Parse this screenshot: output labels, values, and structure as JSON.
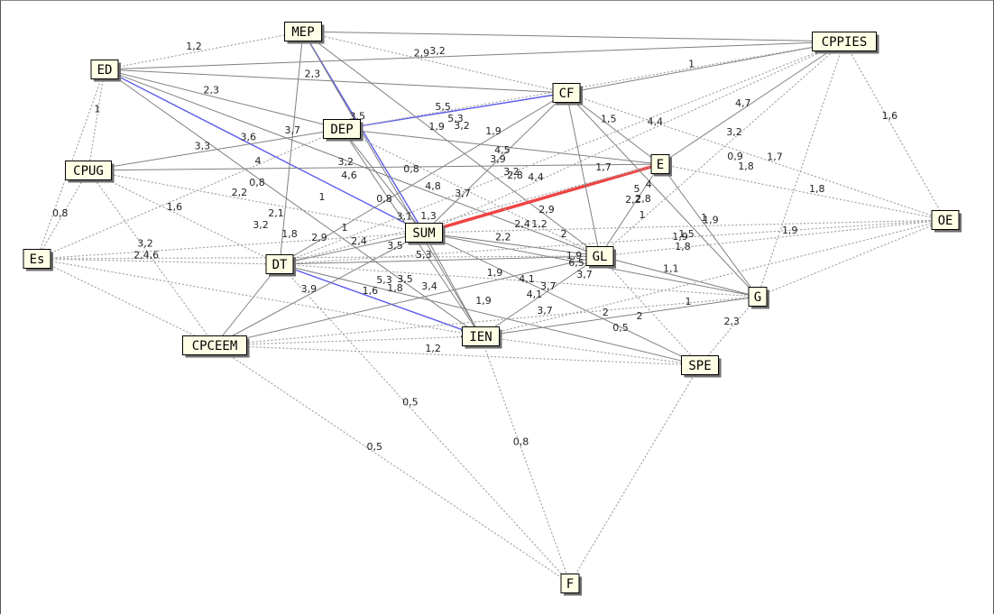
{
  "colors": {
    "background": "#ffffff",
    "node_fill": "#ffffe6",
    "node_border": "#000000",
    "node_shadow": "#6e6e6e",
    "edge_solid": "#808080",
    "edge_dotted": "#a6a6a6",
    "edge_blue": "#5a5aee",
    "edge_red": "#ee4444"
  },
  "nodes": [
    {
      "id": "MEP"
    },
    {
      "id": "CPPIES"
    },
    {
      "id": "ED"
    },
    {
      "id": "CF"
    },
    {
      "id": "DEP"
    },
    {
      "id": "CPUG"
    },
    {
      "id": "E"
    },
    {
      "id": "SUM"
    },
    {
      "id": "OE"
    },
    {
      "id": "Es"
    },
    {
      "id": "DT"
    },
    {
      "id": "GL"
    },
    {
      "id": "G"
    },
    {
      "id": "CPCEEM"
    },
    {
      "id": "IEN"
    },
    {
      "id": "SPE"
    },
    {
      "id": "F"
    }
  ],
  "edges": [
    {
      "source": "MEP",
      "target": "CPPIES",
      "style": "solid",
      "label": ""
    },
    {
      "source": "ED",
      "target": "CPPIES",
      "style": "solid",
      "label": "3,2"
    },
    {
      "source": "ED",
      "target": "CF",
      "style": "solid",
      "label": "2,3"
    },
    {
      "source": "MEP",
      "target": "CF",
      "style": "dotted",
      "label": "2,9"
    },
    {
      "source": "ED",
      "target": "MEP",
      "style": "dotted",
      "label": "1,2"
    },
    {
      "source": "ED",
      "target": "DEP",
      "style": "solid",
      "label": "2,3"
    },
    {
      "source": "ED",
      "target": "SUM",
      "style": "blue",
      "label": "3,6"
    },
    {
      "source": "ED",
      "target": "IEN",
      "style": "solid",
      "label": ""
    },
    {
      "source": "ED",
      "target": "GL",
      "style": "solid",
      "label": ""
    },
    {
      "source": "ED",
      "target": "CPUG",
      "style": "dotted",
      "label": "1"
    },
    {
      "source": "ED",
      "target": "Es",
      "style": "dotted",
      "label": ""
    },
    {
      "source": "MEP",
      "target": "DT",
      "style": "solid",
      "label": "3,7"
    },
    {
      "source": "MEP",
      "target": "SUM",
      "style": "blue",
      "label": "3,5"
    },
    {
      "source": "MEP",
      "target": "GL",
      "style": "solid",
      "label": "1,9"
    },
    {
      "source": "MEP",
      "target": "IEN",
      "style": "solid",
      "label": ""
    },
    {
      "source": "DEP",
      "target": "CF",
      "style": "blue",
      "label": "5,5"
    },
    {
      "source": "CPUG",
      "target": "DEP",
      "style": "solid",
      "label": "3,3"
    },
    {
      "source": "CPUG",
      "target": "E",
      "style": "solid",
      "label": "3,2"
    },
    {
      "source": "DEP",
      "target": "E",
      "style": "solid",
      "label": ""
    },
    {
      "source": "DEP",
      "target": "SUM",
      "style": "solid",
      "label": ""
    },
    {
      "source": "DEP",
      "target": "IEN",
      "style": "solid",
      "label": "3,1"
    },
    {
      "source": "SUM",
      "target": "E",
      "style": "red",
      "label": ""
    },
    {
      "source": "CF",
      "target": "E",
      "style": "solid",
      "label": "1,5"
    },
    {
      "source": "CF",
      "target": "GL",
      "style": "solid",
      "label": ""
    },
    {
      "source": "CF",
      "target": "G",
      "style": "solid",
      "label": ""
    },
    {
      "source": "CF",
      "target": "CPPIES",
      "style": "solid",
      "label": "1"
    },
    {
      "source": "CF",
      "target": "SUM",
      "style": "solid",
      "label": "4,5"
    },
    {
      "source": "CF",
      "target": "DT",
      "style": "solid",
      "label": ""
    },
    {
      "source": "E",
      "target": "CPPIES",
      "style": "solid",
      "label": "4,7"
    },
    {
      "source": "E",
      "target": "GL",
      "style": "solid",
      "label": "2,2"
    },
    {
      "source": "E",
      "target": "G",
      "style": "solid",
      "label": "1"
    },
    {
      "source": "SUM",
      "target": "GL",
      "style": "solid",
      "label": "2,2"
    },
    {
      "source": "SUM",
      "target": "IEN",
      "style": "solid",
      "label": ""
    },
    {
      "source": "SUM",
      "target": "SPE",
      "style": "solid",
      "label": "3,7"
    },
    {
      "source": "SUM",
      "target": "DT",
      "style": "solid",
      "label": "2,4"
    },
    {
      "source": "SUM",
      "target": "G",
      "style": "solid",
      "label": "1,9"
    },
    {
      "source": "DT",
      "target": "CPCEEM",
      "style": "solid",
      "label": ""
    },
    {
      "source": "DT",
      "target": "IEN",
      "style": "blue",
      "label": "1,6"
    },
    {
      "source": "DT",
      "target": "GL",
      "style": "solid",
      "label": "5,3"
    },
    {
      "source": "DT",
      "target": "SPE",
      "style": "solid",
      "label": ""
    },
    {
      "source": "CPCEEM",
      "target": "GL",
      "style": "solid",
      "label": ""
    },
    {
      "source": "CPCEEM",
      "target": "SUM",
      "style": "solid",
      "label": "3,9"
    },
    {
      "source": "IEN",
      "target": "GL",
      "style": "solid",
      "label": "4,1"
    },
    {
      "source": "IEN",
      "target": "G",
      "style": "solid",
      "label": "2"
    },
    {
      "source": "GL",
      "target": "G",
      "style": "solid",
      "label": "1,1"
    },
    {
      "source": "CPPIES",
      "target": "GL",
      "style": "dotted",
      "label": "3,2"
    },
    {
      "source": "CPPIES",
      "target": "DEP",
      "style": "dotted",
      "label": ""
    },
    {
      "source": "CPPIES",
      "target": "SUM",
      "style": "dotted",
      "label": "4,4"
    },
    {
      "source": "CPPIES",
      "target": "OE",
      "style": "dotted",
      "label": "1,6"
    },
    {
      "source": "CPPIES",
      "target": "G",
      "style": "dotted",
      "label": ""
    },
    {
      "source": "CPPIES",
      "target": "DT",
      "style": "dotted",
      "label": ""
    },
    {
      "source": "OE",
      "target": "E",
      "style": "dotted",
      "label": "1,8"
    },
    {
      "source": "OE",
      "target": "GL",
      "style": "dotted",
      "label": "1,9"
    },
    {
      "source": "OE",
      "target": "G",
      "style": "dotted",
      "label": ""
    },
    {
      "source": "OE",
      "target": "SUM",
      "style": "dotted",
      "label": "1,9"
    },
    {
      "source": "OE",
      "target": "IEN",
      "style": "dotted",
      "label": ""
    },
    {
      "source": "OE",
      "target": "DT",
      "style": "dotted",
      "label": ""
    },
    {
      "source": "OE",
      "target": "CF",
      "style": "dotted",
      "label": "1,7"
    },
    {
      "source": "Es",
      "target": "CPUG",
      "style": "dotted",
      "label": "0,8"
    },
    {
      "source": "Es",
      "target": "DEP",
      "style": "dotted",
      "label": ""
    },
    {
      "source": "Es",
      "target": "SUM",
      "style": "dotted",
      "label": ""
    },
    {
      "source": "Es",
      "target": "DT",
      "style": "dotted",
      "label": "2,4,6"
    },
    {
      "source": "Es",
      "target": "GL",
      "style": "dotted",
      "label": ""
    },
    {
      "source": "Es",
      "target": "IEN",
      "style": "dotted",
      "label": ""
    },
    {
      "source": "Es",
      "target": "CPCEEM",
      "style": "dotted",
      "label": ""
    },
    {
      "source": "CPUG",
      "target": "SUM",
      "style": "dotted",
      "label": "2,2"
    },
    {
      "source": "CPUG",
      "target": "DT",
      "style": "dotted",
      "label": "1,6"
    },
    {
      "source": "CPUG",
      "target": "CPCEEM",
      "style": "dotted",
      "label": "3,2"
    },
    {
      "source": "CPCEEM",
      "target": "F",
      "style": "dotted",
      "label": "0,5"
    },
    {
      "source": "IEN",
      "target": "F",
      "style": "dotted",
      "label": "0,8"
    },
    {
      "source": "SPE",
      "target": "F",
      "style": "dotted",
      "label": ""
    },
    {
      "source": "DT",
      "target": "F",
      "style": "dotted",
      "label": "0,5"
    },
    {
      "source": "CPCEEM",
      "target": "SPE",
      "style": "dotted",
      "label": "1,2"
    },
    {
      "source": "CPCEEM",
      "target": "IEN",
      "style": "dotted",
      "label": ""
    },
    {
      "source": "CPCEEM",
      "target": "G",
      "style": "dotted",
      "label": ""
    },
    {
      "source": "DT",
      "target": "G",
      "style": "dotted",
      "label": "1,9"
    },
    {
      "source": "G",
      "target": "SPE",
      "style": "dotted",
      "label": "2,3"
    },
    {
      "source": "IEN",
      "target": "SPE",
      "style": "dotted",
      "label": ""
    },
    {
      "source": "GL",
      "target": "SPE",
      "style": "dotted",
      "label": ""
    },
    {
      "source": "DEP",
      "target": "GL",
      "style": "dotted",
      "label": ""
    },
    {
      "source": "E",
      "target": "DT",
      "style": "dotted",
      "label": ""
    }
  ],
  "extra_labels": [
    "0,8",
    "5,3",
    "3,2",
    "1,9",
    "3,9",
    "3,2",
    "2,8",
    "4,4",
    "1,7",
    "0,9",
    "1,8",
    "5",
    "4",
    "4,6",
    "4,8",
    "3,7",
    "1,3",
    "0,8",
    "1",
    "3,2",
    "2,1",
    "1,8",
    "2,9",
    "1",
    "3,5",
    "2,4",
    "1,2",
    "2",
    "6,5",
    "3,7",
    "5,3",
    "3,5",
    "1,8",
    "3,4",
    "1,9",
    "4,1",
    "3,7",
    "0,5",
    "1",
    "2,2",
    "4",
    "1,8",
    "2,8",
    "1",
    "1,5",
    "1,9",
    "2",
    "0,8",
    "2,9"
  ]
}
